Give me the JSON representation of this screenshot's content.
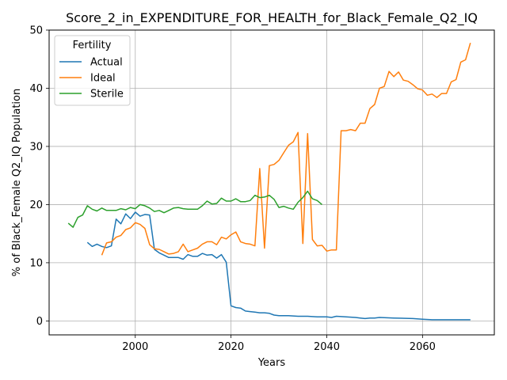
{
  "chart_data": {
    "type": "line",
    "title": "Score_2_in_EXPENDITURE_FOR_HEALTH_for_Black_Female_Q2_IQ",
    "xlabel": "Years",
    "ylabel": "% of Black_Female Q2_IQ Population",
    "xlim": [
      1982,
      2075
    ],
    "ylim": [
      -2.4,
      50
    ],
    "xticks": [
      2000,
      2020,
      2040,
      2060
    ],
    "yticks": [
      0,
      10,
      20,
      30,
      40,
      50
    ],
    "grid": true,
    "legend": {
      "title": "Fertility",
      "placement": "top-left"
    },
    "series": [
      {
        "name": "Actual",
        "color": "#1f77b4",
        "x": [
          1990,
          1991,
          1992,
          1993,
          1994,
          1995,
          1996,
          1997,
          1998,
          1999,
          2000,
          2001,
          2002,
          2003,
          2004,
          2005,
          2006,
          2007,
          2008,
          2009,
          2010,
          2011,
          2012,
          2013,
          2014,
          2015,
          2016,
          2017,
          2018,
          2019,
          2020,
          2021,
          2022,
          2023,
          2024,
          2025,
          2026,
          2027,
          2028,
          2029,
          2030,
          2032,
          2034,
          2036,
          2038,
          2040,
          2041,
          2042,
          2044,
          2046,
          2047,
          2048,
          2049,
          2050,
          2051,
          2054,
          2058,
          2060,
          2062,
          2066,
          2070
        ],
        "y": [
          13.5,
          12.8,
          13.2,
          12.8,
          12.6,
          12.9,
          17.5,
          16.7,
          18.4,
          17.6,
          18.7,
          18.0,
          18.3,
          18.2,
          12.3,
          11.7,
          11.3,
          10.9,
          10.9,
          10.9,
          10.6,
          11.4,
          11.1,
          11.1,
          11.6,
          11.3,
          11.4,
          10.8,
          11.4,
          10.1,
          2.6,
          2.3,
          2.2,
          1.7,
          1.6,
          1.5,
          1.4,
          1.4,
          1.3,
          1.0,
          0.9,
          0.9,
          0.8,
          0.8,
          0.7,
          0.7,
          0.6,
          0.8,
          0.7,
          0.6,
          0.5,
          0.4,
          0.5,
          0.5,
          0.6,
          0.5,
          0.4,
          0.3,
          0.2,
          0.2,
          0.2
        ]
      },
      {
        "name": "Ideal",
        "color": "#ff7f0e",
        "x": [
          1993,
          1994,
          1995,
          1996,
          1997,
          1998,
          1999,
          2000,
          2001,
          2002,
          2003,
          2004,
          2005,
          2006,
          2007,
          2008,
          2009,
          2010,
          2011,
          2012,
          2013,
          2014,
          2015,
          2016,
          2017,
          2018,
          2019,
          2020,
          2021,
          2022,
          2023,
          2024,
          2025,
          2026,
          2027,
          2028,
          2029,
          2030,
          2031,
          2032,
          2033,
          2034,
          2035,
          2036,
          2037,
          2038,
          2039,
          2040,
          2041,
          2042,
          2043,
          2044,
          2045,
          2046,
          2047,
          2048,
          2049,
          2050,
          2051,
          2052,
          2053,
          2054,
          2055,
          2056,
          2057,
          2058,
          2059,
          2060,
          2061,
          2062,
          2063,
          2064,
          2065,
          2066,
          2067,
          2068,
          2069,
          2070
        ],
        "y": [
          11.3,
          13.4,
          13.6,
          14.4,
          14.7,
          15.7,
          16.0,
          16.9,
          16.6,
          15.9,
          13.1,
          12.4,
          12.3,
          11.9,
          11.5,
          11.6,
          11.9,
          13.2,
          11.9,
          12.2,
          12.5,
          13.2,
          13.6,
          13.6,
          13.1,
          14.4,
          14.1,
          14.8,
          15.3,
          13.6,
          13.3,
          13.2,
          12.9,
          26.2,
          12.5,
          26.7,
          26.9,
          27.6,
          28.9,
          30.2,
          30.8,
          32.4,
          13.3,
          32.2,
          14.0,
          12.9,
          13.0,
          12.0,
          12.2,
          12.2,
          32.7,
          32.7,
          32.9,
          32.7,
          34.0,
          34.0,
          36.5,
          37.2,
          40.0,
          40.3,
          42.9,
          42.0,
          42.8,
          41.4,
          41.2,
          40.6,
          39.9,
          39.7,
          38.8,
          39.0,
          38.4,
          39.1,
          39.1,
          41.1,
          41.5,
          44.5,
          44.9,
          47.8
        ]
      },
      {
        "name": "Sterile",
        "color": "#2ca02c",
        "x": [
          1986,
          1987,
          1988,
          1989,
          1990,
          1991,
          1992,
          1993,
          1994,
          1995,
          1996,
          1997,
          1998,
          1999,
          2000,
          2001,
          2002,
          2003,
          2004,
          2005,
          2006,
          2007,
          2008,
          2009,
          2010,
          2011,
          2012,
          2013,
          2014,
          2015,
          2016,
          2017,
          2018,
          2019,
          2020,
          2021,
          2022,
          2023,
          2024,
          2025,
          2026,
          2027,
          2028,
          2029,
          2030,
          2031,
          2032,
          2033,
          2034,
          2035,
          2036,
          2037,
          2038,
          2039
        ],
        "y": [
          16.8,
          16.1,
          17.8,
          18.2,
          19.8,
          19.2,
          18.9,
          19.4,
          19.0,
          19.0,
          19.0,
          19.3,
          19.1,
          19.5,
          19.3,
          20.0,
          19.8,
          19.4,
          18.8,
          19.0,
          18.6,
          19.0,
          19.4,
          19.5,
          19.3,
          19.2,
          19.2,
          19.2,
          19.8,
          20.6,
          20.1,
          20.2,
          21.1,
          20.6,
          20.6,
          21.0,
          20.5,
          20.5,
          20.7,
          21.6,
          21.2,
          21.3,
          21.6,
          20.9,
          19.5,
          19.7,
          19.4,
          19.2,
          20.4,
          21.2,
          22.3,
          21.0,
          20.7,
          20.0
        ]
      }
    ]
  }
}
